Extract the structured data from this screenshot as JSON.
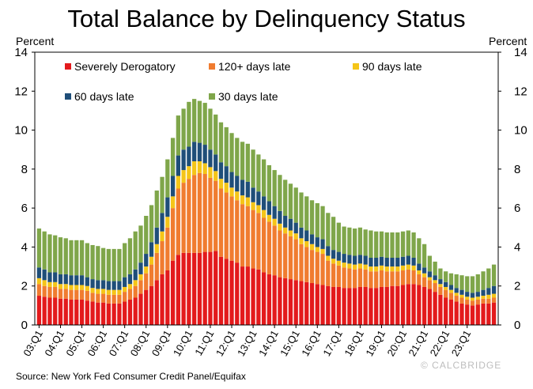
{
  "title": "Total Balance by Delinquency Status",
  "source": "Source: New York Fed Consumer Credit Panel/Equifax",
  "watermark": "© CALCBRIDGE",
  "chart_data": {
    "type": "bar",
    "stacked": true,
    "title": "Total Balance by Delinquency Status",
    "ylabel_left": "Percent",
    "ylabel_right": "Percent",
    "ylim": [
      0,
      14
    ],
    "yticks": [
      "0",
      "2",
      "4",
      "6",
      "8",
      "10",
      "12",
      "14"
    ],
    "quarter_start": "2003-Q1",
    "xtick_labels": [
      "03:Q1",
      "04:Q1",
      "05:Q1",
      "06:Q1",
      "07:Q1",
      "08:Q1",
      "09:Q1",
      "10:Q1",
      "11:Q1",
      "12:Q1",
      "13:Q1",
      "14:Q1",
      "15:Q1",
      "16:Q1",
      "17:Q1",
      "18:Q1",
      "19:Q1",
      "20:Q1",
      "21:Q1",
      "22:Q1",
      "23:Q1"
    ],
    "legend": [
      {
        "name": "Severely Derogatory",
        "color": "#e31a1c"
      },
      {
        "name": "120+ days late",
        "color": "#f07c30"
      },
      {
        "name": "90 days late",
        "color": "#f5c518"
      },
      {
        "name": "60 days late",
        "color": "#1f4e79"
      },
      {
        "name": "30 days late",
        "color": "#7fa64a"
      }
    ],
    "series": [
      {
        "name": "Severely Derogatory",
        "color": "#e31a1c",
        "values": [
          1.5,
          1.45,
          1.4,
          1.4,
          1.35,
          1.35,
          1.3,
          1.3,
          1.3,
          1.25,
          1.2,
          1.15,
          1.15,
          1.1,
          1.1,
          1.1,
          1.2,
          1.3,
          1.4,
          1.6,
          1.8,
          2.0,
          2.3,
          2.6,
          2.8,
          3.3,
          3.6,
          3.7,
          3.7,
          3.7,
          3.7,
          3.75,
          3.75,
          3.8,
          3.5,
          3.4,
          3.3,
          3.2,
          3.0,
          3.0,
          2.9,
          2.85,
          2.7,
          2.6,
          2.55,
          2.45,
          2.4,
          2.35,
          2.3,
          2.25,
          2.2,
          2.15,
          2.1,
          2.05,
          2.0,
          1.95,
          1.95,
          1.9,
          1.9,
          1.9,
          1.95,
          1.95,
          1.9,
          1.9,
          1.95,
          1.95,
          2.0,
          2.0,
          2.05,
          2.1,
          2.1,
          2.05,
          1.95,
          1.85,
          1.7,
          1.55,
          1.4,
          1.3,
          1.2,
          1.1,
          1.05,
          1.0,
          1.05,
          1.1,
          1.1,
          1.15
        ]
      },
      {
        "name": "120+ days late",
        "color": "#f07c30",
        "values": [
          0.6,
          0.55,
          0.55,
          0.55,
          0.5,
          0.5,
          0.5,
          0.5,
          0.5,
          0.5,
          0.45,
          0.45,
          0.45,
          0.45,
          0.45,
          0.45,
          0.5,
          0.55,
          0.6,
          0.7,
          0.85,
          1.1,
          1.4,
          1.7,
          2.2,
          2.7,
          3.4,
          3.6,
          3.8,
          4.0,
          4.1,
          4.0,
          3.8,
          3.6,
          3.5,
          3.4,
          3.3,
          3.2,
          3.2,
          3.1,
          3.0,
          2.9,
          2.8,
          2.7,
          2.55,
          2.4,
          2.3,
          2.2,
          2.1,
          1.9,
          1.8,
          1.7,
          1.65,
          1.6,
          1.3,
          1.2,
          1.1,
          1.05,
          1.0,
          0.95,
          0.95,
          0.9,
          0.85,
          0.85,
          0.85,
          0.8,
          0.75,
          0.75,
          0.75,
          0.75,
          0.7,
          0.55,
          0.5,
          0.45,
          0.45,
          0.4,
          0.4,
          0.35,
          0.3,
          0.3,
          0.25,
          0.25,
          0.25,
          0.25,
          0.25,
          0.25
        ]
      },
      {
        "name": "90 days late",
        "color": "#f5c518",
        "values": [
          0.3,
          0.3,
          0.25,
          0.25,
          0.25,
          0.25,
          0.25,
          0.25,
          0.25,
          0.25,
          0.25,
          0.25,
          0.25,
          0.25,
          0.25,
          0.25,
          0.25,
          0.25,
          0.3,
          0.3,
          0.35,
          0.4,
          0.45,
          0.5,
          0.55,
          0.6,
          0.65,
          0.65,
          0.65,
          0.7,
          0.6,
          0.55,
          0.55,
          0.5,
          0.5,
          0.5,
          0.45,
          0.45,
          0.45,
          0.45,
          0.4,
          0.4,
          0.4,
          0.35,
          0.35,
          0.35,
          0.3,
          0.3,
          0.3,
          0.3,
          0.3,
          0.3,
          0.25,
          0.25,
          0.25,
          0.25,
          0.25,
          0.25,
          0.25,
          0.25,
          0.25,
          0.25,
          0.25,
          0.25,
          0.25,
          0.25,
          0.25,
          0.25,
          0.25,
          0.25,
          0.25,
          0.2,
          0.2,
          0.15,
          0.15,
          0.15,
          0.15,
          0.15,
          0.15,
          0.15,
          0.15,
          0.15,
          0.15,
          0.15,
          0.2,
          0.2
        ]
      },
      {
        "name": "60 days late",
        "color": "#1f4e79",
        "values": [
          0.55,
          0.55,
          0.5,
          0.5,
          0.5,
          0.5,
          0.5,
          0.5,
          0.5,
          0.45,
          0.45,
          0.45,
          0.45,
          0.45,
          0.45,
          0.45,
          0.5,
          0.5,
          0.55,
          0.6,
          0.65,
          0.75,
          0.85,
          0.95,
          1.0,
          1.05,
          1.05,
          1.05,
          1.0,
          1.0,
          0.95,
          0.95,
          0.9,
          0.85,
          0.85,
          0.85,
          0.8,
          0.8,
          0.8,
          0.8,
          0.75,
          0.7,
          0.7,
          0.7,
          0.65,
          0.65,
          0.6,
          0.6,
          0.55,
          0.55,
          0.55,
          0.5,
          0.5,
          0.5,
          0.5,
          0.45,
          0.45,
          0.45,
          0.45,
          0.45,
          0.45,
          0.45,
          0.45,
          0.45,
          0.45,
          0.45,
          0.45,
          0.45,
          0.45,
          0.45,
          0.4,
          0.35,
          0.3,
          0.3,
          0.25,
          0.25,
          0.25,
          0.25,
          0.25,
          0.25,
          0.25,
          0.25,
          0.25,
          0.3,
          0.35,
          0.4
        ]
      },
      {
        "name": "30 days late",
        "color": "#7fa64a",
        "values": [
          2.0,
          1.95,
          1.95,
          1.9,
          1.9,
          1.85,
          1.8,
          1.8,
          1.8,
          1.75,
          1.75,
          1.75,
          1.65,
          1.65,
          1.65,
          1.65,
          1.75,
          1.85,
          1.95,
          1.9,
          1.95,
          1.9,
          1.9,
          1.85,
          1.95,
          1.95,
          2.05,
          2.1,
          2.3,
          2.2,
          2.15,
          2.15,
          2.1,
          2.05,
          2.05,
          2.0,
          2.0,
          1.95,
          1.95,
          1.95,
          1.95,
          1.9,
          1.9,
          1.85,
          1.85,
          1.85,
          1.85,
          1.8,
          1.8,
          1.8,
          1.75,
          1.75,
          1.75,
          1.7,
          1.7,
          1.7,
          1.5,
          1.4,
          1.4,
          1.4,
          1.4,
          1.35,
          1.4,
          1.35,
          1.3,
          1.3,
          1.3,
          1.3,
          1.3,
          1.3,
          1.3,
          1.3,
          1.2,
          0.8,
          0.7,
          0.55,
          0.55,
          0.6,
          0.7,
          0.75,
          0.8,
          0.85,
          0.9,
          0.95,
          1.0,
          1.1
        ]
      }
    ]
  }
}
